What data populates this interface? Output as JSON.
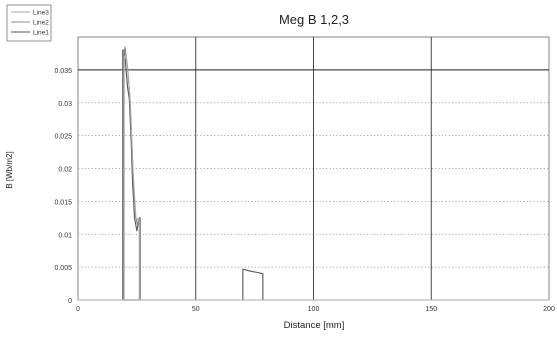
{
  "chart_data": {
    "type": "line",
    "title": "Meg B 1,2,3",
    "xlabel": "Distance [mm]",
    "ylabel": "B [Wb/m2]",
    "xlim": [
      0,
      200
    ],
    "ylim": [
      0,
      0.04
    ],
    "x_ticks": [
      0,
      50,
      100,
      150,
      200
    ],
    "x_tick_labels": [
      "0",
      "50",
      "100",
      "150",
      "200"
    ],
    "y_ticks": [
      0,
      0.005,
      0.01,
      0.015,
      0.02,
      0.025,
      0.03,
      0.035
    ],
    "y_tick_labels": [
      "0",
      "0.005",
      "0.01",
      "0.015",
      "0.02",
      "0.025",
      "0.03",
      "0.035"
    ],
    "grid": true,
    "legend_position": "top-left",
    "reference_line": {
      "y": 0.035,
      "color": "#222222"
    },
    "series": [
      {
        "name": "Line1",
        "legend": "Line1",
        "color": "#555555",
        "points": [
          [
            0,
            0
          ],
          [
            19,
            0
          ],
          [
            19,
            0.038
          ],
          [
            19.7,
            0.038
          ],
          [
            20.3,
            0.0355
          ],
          [
            21,
            0.0325
          ],
          [
            21.8,
            0.0305
          ],
          [
            22.6,
            0.024
          ],
          [
            23.2,
            0.0175
          ],
          [
            24,
            0.0125
          ],
          [
            25,
            0.0105
          ],
          [
            26,
            0.0125
          ],
          [
            26.4,
            0.0125
          ],
          [
            26.4,
            0
          ],
          [
            70,
            0
          ],
          [
            70,
            0.0047
          ],
          [
            73,
            0.0044
          ],
          [
            76,
            0.0042
          ],
          [
            78.5,
            0.004
          ],
          [
            78.5,
            0
          ],
          [
            200,
            0
          ]
        ]
      },
      {
        "name": "Line2",
        "legend": "Line2",
        "color": "#888888",
        "points": [
          [
            0,
            0
          ],
          [
            19.3,
            0
          ],
          [
            19.3,
            0.037
          ],
          [
            20,
            0.0385
          ],
          [
            21,
            0.0355
          ],
          [
            22,
            0.031
          ],
          [
            23,
            0.0225
          ],
          [
            24,
            0.0135
          ],
          [
            25.2,
            0.0115
          ],
          [
            26.2,
            0.0125
          ],
          [
            26.2,
            0
          ],
          [
            200,
            0
          ]
        ]
      },
      {
        "name": "Line3",
        "legend": "Line3",
        "color": "#aaaaaa",
        "points": [
          [
            0,
            0
          ],
          [
            19.6,
            0
          ],
          [
            19.6,
            0.0365
          ],
          [
            20.4,
            0.0375
          ],
          [
            21.3,
            0.0345
          ],
          [
            22.3,
            0.0295
          ],
          [
            23.4,
            0.0195
          ],
          [
            24.6,
            0.0125
          ],
          [
            26,
            0.012
          ],
          [
            26,
            0
          ],
          [
            200,
            0
          ]
        ]
      }
    ]
  }
}
